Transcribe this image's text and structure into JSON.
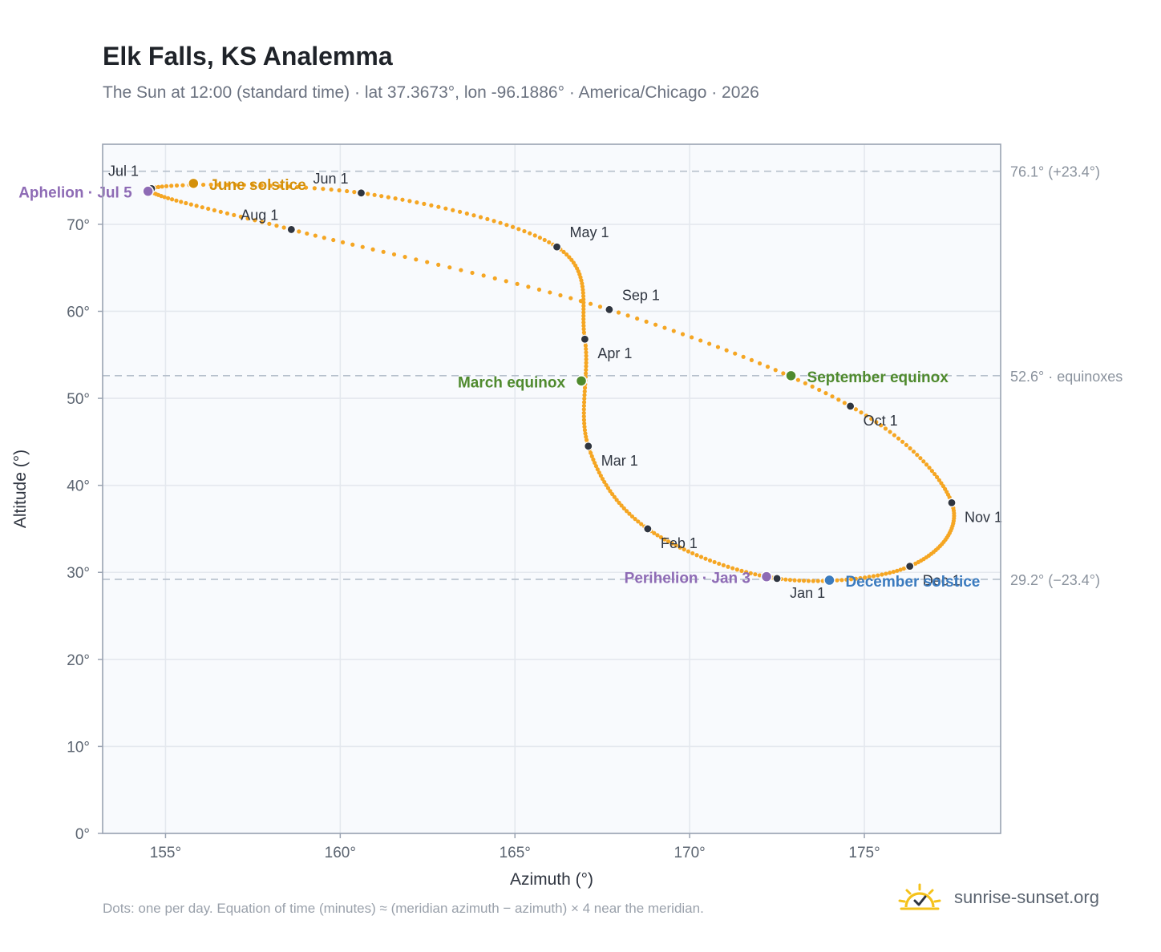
{
  "title": "Elk Falls, KS Analemma",
  "subtitle": "The Sun at 12:00 (standard time) · lat 37.3673°, lon -96.1886° · America/Chicago · 2026",
  "footnote": "Dots: one per day. Equation of time (minutes) ≈ (meridian azimuth − azimuth) × 4 near the meridian.",
  "brand": {
    "name": "sunrise-sunset.org",
    "icon": "sun-check-icon"
  },
  "colors": {
    "curve": "#f5a623",
    "month_marker": "#2f3540",
    "equinox": "#4f8a2e",
    "june_solstice": "#d4900a",
    "december_solstice": "#3b7bbf",
    "apsis": "#8e6bb5",
    "plot_bg": "#f8fafd",
    "grid": "#e4e8ee",
    "axis": "#9aa3b2"
  },
  "chart_data": {
    "type": "scatter",
    "xlabel": "Azimuth (°)",
    "ylabel": "Altitude (°)",
    "xlim": [
      153.2,
      178.9
    ],
    "ylim": [
      0,
      79.2
    ],
    "x_ticks": [
      155,
      160,
      165,
      170,
      175
    ],
    "y_ticks": [
      0,
      10,
      20,
      30,
      40,
      50,
      60,
      70
    ],
    "x_tick_labels": [
      "155°",
      "160°",
      "165°",
      "170°",
      "175°"
    ],
    "y_tick_labels": [
      "0°",
      "10°",
      "20°",
      "30°",
      "40°",
      "50°",
      "60°",
      "70°"
    ],
    "grid": true,
    "reference_lines": [
      {
        "y": 76.1,
        "label": "76.1° (+23.4°)"
      },
      {
        "y": 52.6,
        "label": "52.6° · equinoxes"
      },
      {
        "y": 29.2,
        "label": "29.2° (−23.4°)"
      }
    ],
    "month_markers": [
      {
        "label": "Jan 1",
        "x": 172.5,
        "y": 29.3
      },
      {
        "label": "Feb 1",
        "x": 168.8,
        "y": 35.0
      },
      {
        "label": "Mar 1",
        "x": 167.1,
        "y": 44.5
      },
      {
        "label": "Apr 1",
        "x": 167.0,
        "y": 56.8
      },
      {
        "label": "May 1",
        "x": 166.2,
        "y": 67.4
      },
      {
        "label": "Jun 1",
        "x": 160.6,
        "y": 73.6
      },
      {
        "label": "Jul 1",
        "x": 154.6,
        "y": 74.1
      },
      {
        "label": "Aug 1",
        "x": 158.6,
        "y": 69.4
      },
      {
        "label": "Sep 1",
        "x": 167.7,
        "y": 60.2
      },
      {
        "label": "Oct 1",
        "x": 174.6,
        "y": 49.1
      },
      {
        "label": "Nov 1",
        "x": 177.5,
        "y": 38.0
      },
      {
        "label": "Dec 1",
        "x": 176.3,
        "y": 30.7
      }
    ],
    "events": [
      {
        "label": "March equinox",
        "x": 166.9,
        "y": 52.0,
        "kind": "equinox"
      },
      {
        "label": "June solstice",
        "x": 155.8,
        "y": 74.7,
        "kind": "june_solstice"
      },
      {
        "label": "September equinox",
        "x": 172.9,
        "y": 52.6,
        "kind": "equinox"
      },
      {
        "label": "December solstice",
        "x": 174.0,
        "y": 29.1,
        "kind": "december_solstice"
      },
      {
        "label": "Perihelion · Jan 3",
        "x": 172.2,
        "y": 29.5,
        "kind": "apsis"
      },
      {
        "label": "Aphelion · Jul 5",
        "x": 154.5,
        "y": 73.8,
        "kind": "apsis"
      }
    ]
  }
}
